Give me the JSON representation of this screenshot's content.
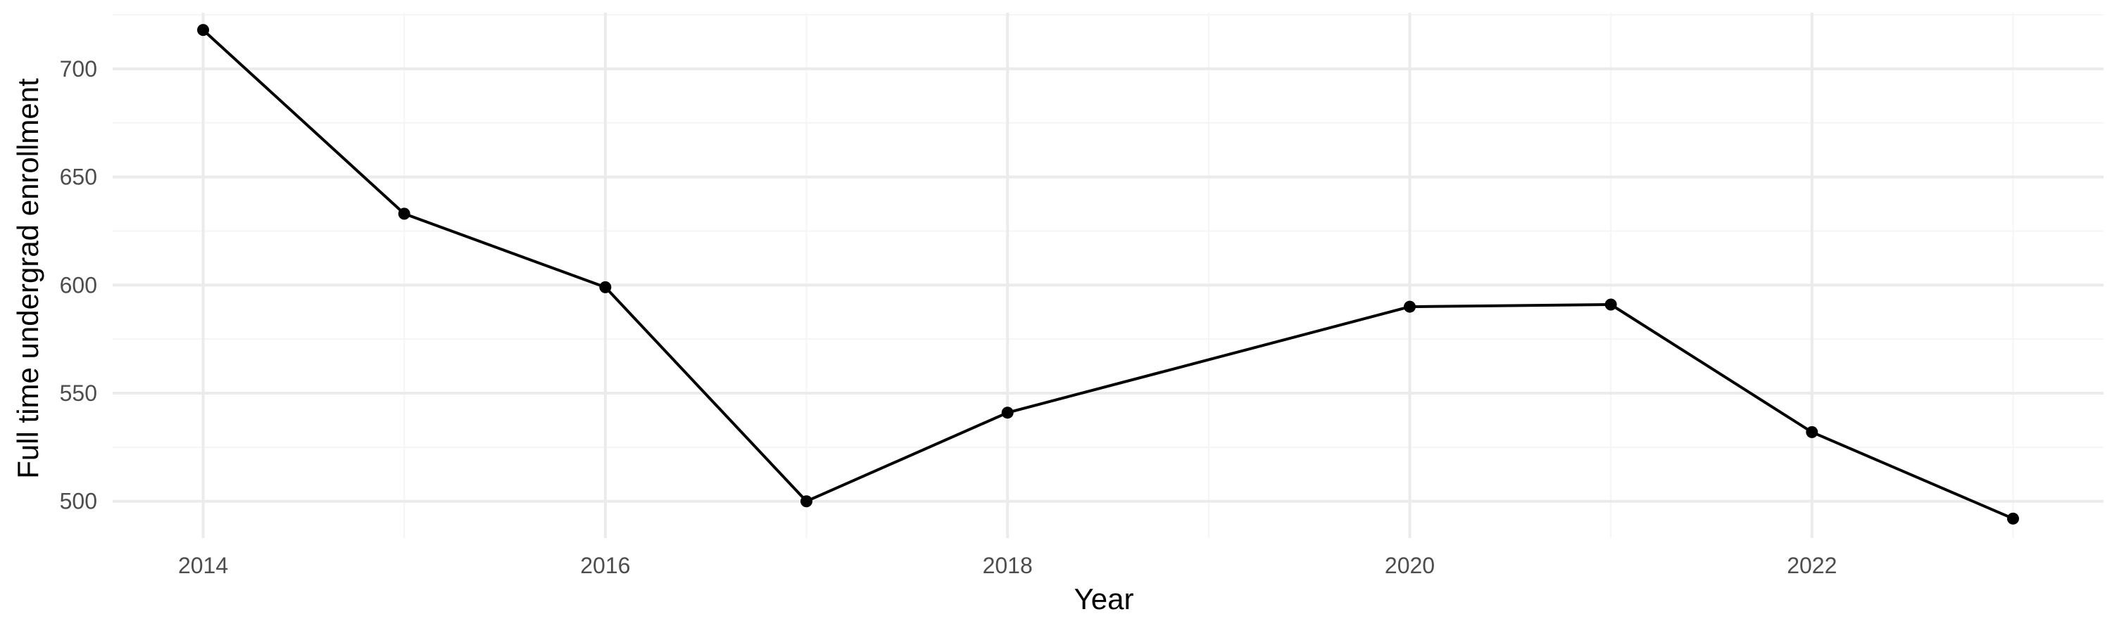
{
  "chart_data": {
    "type": "line",
    "title": "",
    "xlabel": "Year",
    "ylabel": "Full time undergrad enrollment",
    "x": [
      2014,
      2015,
      2016,
      2017,
      2018,
      2020,
      2021,
      2022,
      2023
    ],
    "series": [
      {
        "values": [
          718,
          633,
          599,
          500,
          541,
          590,
          591,
          532,
          492
        ]
      }
    ],
    "xlim": [
      2013.55,
      2023.45
    ],
    "ylim": [
      483,
      726
    ],
    "x_ticks": [
      2014,
      2016,
      2018,
      2020,
      2022
    ],
    "x_tick_labels": [
      "2014",
      "2016",
      "2018",
      "2020",
      "2022"
    ],
    "x_minor_ticks": [
      2015,
      2017,
      2019,
      2021,
      2023
    ],
    "y_ticks": [
      500,
      550,
      600,
      650,
      700
    ],
    "y_tick_labels": [
      "500",
      "550",
      "600",
      "650",
      "700"
    ],
    "y_minor_ticks": [
      475,
      525,
      575,
      625,
      675,
      725
    ],
    "grid": true,
    "legend": "none",
    "colors": {
      "line": "#000000",
      "points": "#000000",
      "grid_major": "#ebebeb",
      "grid_minor": "#f5f5f5",
      "tick_text": "#4d4d4d",
      "axis_title": "#000000",
      "background": "#ffffff"
    }
  }
}
